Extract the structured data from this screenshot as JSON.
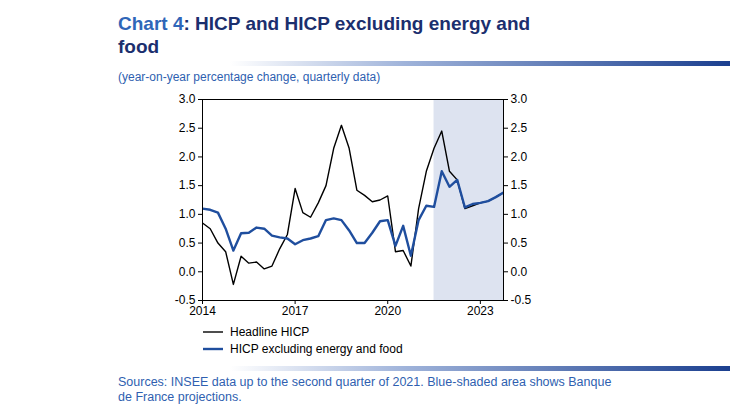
{
  "chart_data": {
    "type": "line",
    "title": "Chart 4: HICP and HICP excluding energy and food",
    "subtitle": "(year-on-year percentage change, quarterly data)",
    "source": "Sources: INSEE data up to the second quarter of 2021. Blue-shaded area shows Banque de France projections.",
    "x": [
      2014,
      2014.25,
      2014.5,
      2014.75,
      2015,
      2015.25,
      2015.5,
      2015.75,
      2016,
      2016.25,
      2016.5,
      2016.75,
      2017,
      2017.25,
      2017.5,
      2017.75,
      2018,
      2018.25,
      2018.5,
      2018.75,
      2019,
      2019.25,
      2019.5,
      2019.75,
      2020,
      2020.25,
      2020.5,
      2020.75,
      2021,
      2021.25,
      2021.5,
      2021.75,
      2022,
      2022.25,
      2022.5,
      2022.75,
      2023,
      2023.25,
      2023.5,
      2023.75
    ],
    "series": [
      {
        "name": "Headline HICP",
        "color": "#000000",
        "values": [
          0.85,
          0.75,
          0.5,
          0.35,
          -0.22,
          0.27,
          0.15,
          0.17,
          0.05,
          0.1,
          0.4,
          0.65,
          1.45,
          1.03,
          0.95,
          1.2,
          1.5,
          2.15,
          2.55,
          2.15,
          1.42,
          1.33,
          1.22,
          1.25,
          1.32,
          0.35,
          0.37,
          0.1,
          1.1,
          1.75,
          2.15,
          2.45,
          1.75,
          1.6,
          1.1,
          1.15,
          1.2,
          1.23,
          1.3,
          1.38
        ]
      },
      {
        "name": "HICP excluding energy and food",
        "color": "#1f4e9e",
        "values": [
          1.1,
          1.08,
          1.03,
          0.75,
          0.37,
          0.67,
          0.68,
          0.77,
          0.75,
          0.63,
          0.6,
          0.58,
          0.48,
          0.55,
          0.58,
          0.62,
          0.9,
          0.93,
          0.9,
          0.72,
          0.5,
          0.5,
          0.68,
          0.88,
          0.9,
          0.45,
          0.8,
          0.28,
          0.9,
          1.15,
          1.13,
          1.75,
          1.48,
          1.6,
          1.12,
          1.18,
          1.2,
          1.23,
          1.3,
          1.38
        ]
      }
    ],
    "xlim": [
      2014,
      2023.75
    ],
    "xticks": [
      2014,
      2017,
      2020,
      2023
    ],
    "ylim": [
      -0.5,
      3.0
    ],
    "yticks": [
      -0.5,
      {
        "value": 0,
        "label": "0.0"
      },
      0.5,
      {
        "value": 1,
        "label": "1.0"
      },
      1.5,
      {
        "value": 2,
        "label": "2.0"
      },
      2.5,
      {
        "value": 3,
        "label": "3.0"
      }
    ],
    "shaded_area": {
      "x": [
        2021.5,
        2023.75
      ],
      "color": "#dde3f0"
    },
    "grid": false,
    "legend": "bottom"
  }
}
